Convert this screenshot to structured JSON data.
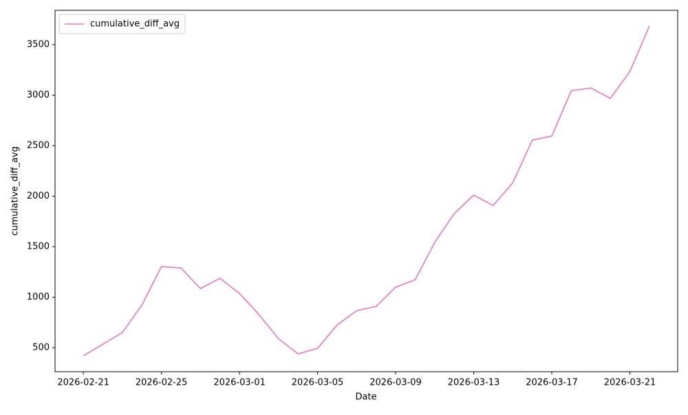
{
  "chart_data": {
    "type": "line",
    "x_label": "Date",
    "y_label": "cumulative_diff_avg",
    "x": [
      "2026-02-21",
      "2026-02-22",
      "2026-02-23",
      "2026-02-24",
      "2026-02-25",
      "2026-02-26",
      "2026-02-27",
      "2026-02-28",
      "2026-03-01",
      "2026-03-02",
      "2026-03-03",
      "2026-03-04",
      "2026-03-05",
      "2026-03-06",
      "2026-03-07",
      "2026-03-08",
      "2026-03-09",
      "2026-03-10",
      "2026-03-11",
      "2026-03-12",
      "2026-03-13",
      "2026-03-14",
      "2026-03-15",
      "2026-03-16",
      "2026-03-17",
      "2026-03-18",
      "2026-03-19",
      "2026-03-20",
      "2026-03-21",
      "2026-03-22"
    ],
    "series": [
      {
        "name": "cumulative_diff_avg",
        "color": "#e377c2",
        "values": [
          420,
          534,
          650,
          922,
          1303,
          1289,
          1085,
          1187,
          1037,
          827,
          588,
          439,
          493,
          724,
          867,
          908,
          1099,
          1173,
          1541,
          1827,
          2010,
          1908,
          2132,
          2554,
          2595,
          3044,
          3071,
          2969,
          3234,
          3683
        ]
      }
    ],
    "xlim": [
      "2026-02-19T13:12",
      "2026-03-23T10:48"
    ],
    "xticks": [
      "2026-02-21",
      "2026-02-25",
      "2026-03-01",
      "2026-03-05",
      "2026-03-09",
      "2026-03-13",
      "2026-03-17",
      "2026-03-21"
    ],
    "ylim": [
      262,
      3840
    ],
    "yticks": [
      500,
      1000,
      1500,
      2000,
      2500,
      3000,
      3500
    ],
    "grid": false,
    "legend": "upper left"
  }
}
